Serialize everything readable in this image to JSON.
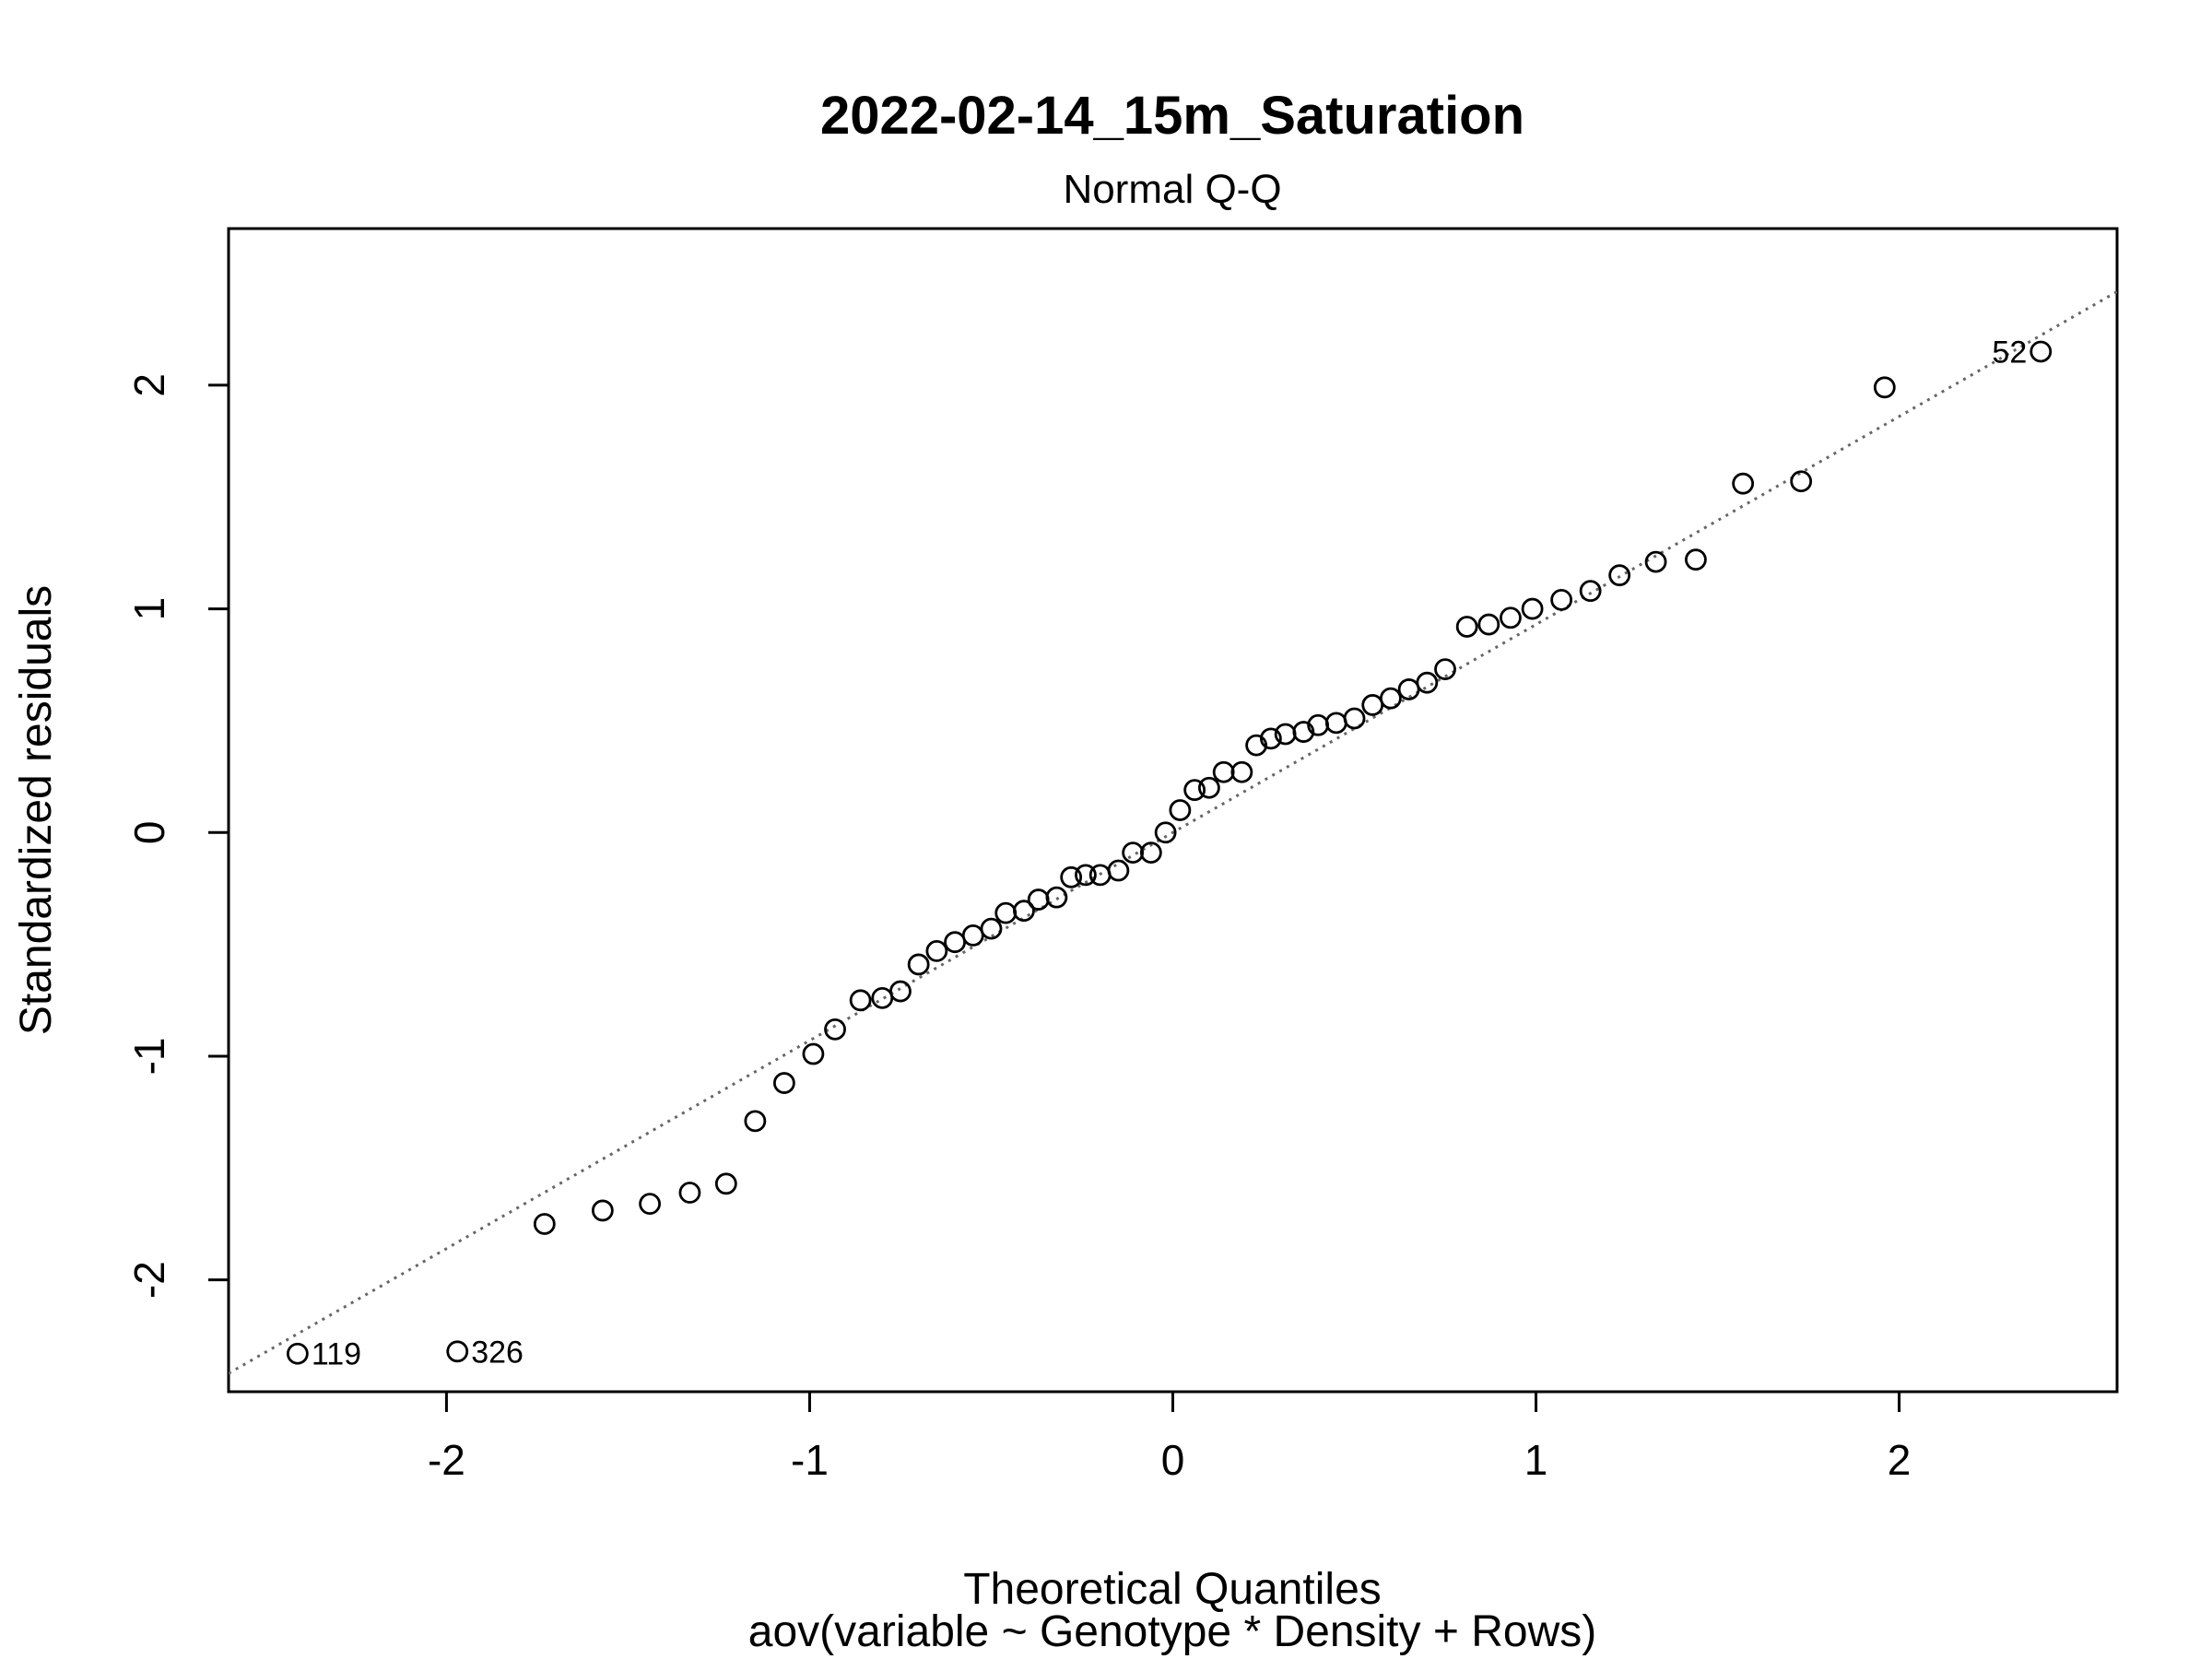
{
  "chart_data": {
    "type": "scatter",
    "title": "2022-02-14_15m_Saturation",
    "subtitle": "Normal Q-Q",
    "xlabel": "Theoretical Quantiles",
    "xlabel2": "aov(variable ~ Genotype * Density + Rows)",
    "ylabel": "Standardized residuals",
    "xlim": [
      -2.6,
      2.6
    ],
    "ylim": [
      -2.5,
      2.7
    ],
    "xticks": [
      -2,
      -1,
      0,
      1,
      2
    ],
    "yticks": [
      -2,
      -1,
      0,
      1,
      2
    ],
    "grid": false,
    "reference_line": {
      "slope": 0.93,
      "intercept": 0.0,
      "style": "dotted",
      "color": "#666666"
    },
    "points": [
      {
        "x": -2.41,
        "y": -2.33,
        "label": "119"
      },
      {
        "x": -1.97,
        "y": -2.32,
        "label": "326"
      },
      {
        "x": -1.73,
        "y": -1.75
      },
      {
        "x": -1.57,
        "y": -1.69
      },
      {
        "x": -1.44,
        "y": -1.66
      },
      {
        "x": -1.33,
        "y": -1.61
      },
      {
        "x": -1.23,
        "y": -1.57
      },
      {
        "x": -1.15,
        "y": -1.29
      },
      {
        "x": -1.07,
        "y": -1.12
      },
      {
        "x": -0.99,
        "y": -0.99
      },
      {
        "x": -0.93,
        "y": -0.88
      },
      {
        "x": -0.86,
        "y": -0.75
      },
      {
        "x": -0.8,
        "y": -0.74
      },
      {
        "x": -0.75,
        "y": -0.71
      },
      {
        "x": -0.7,
        "y": -0.59
      },
      {
        "x": -0.65,
        "y": -0.53
      },
      {
        "x": -0.6,
        "y": -0.49
      },
      {
        "x": -0.55,
        "y": -0.46
      },
      {
        "x": -0.5,
        "y": -0.43
      },
      {
        "x": -0.46,
        "y": -0.36
      },
      {
        "x": -0.41,
        "y": -0.35
      },
      {
        "x": -0.37,
        "y": -0.3
      },
      {
        "x": -0.32,
        "y": -0.29
      },
      {
        "x": -0.28,
        "y": -0.2
      },
      {
        "x": -0.24,
        "y": -0.19
      },
      {
        "x": -0.2,
        "y": -0.19
      },
      {
        "x": -0.15,
        "y": -0.17
      },
      {
        "x": -0.11,
        "y": -0.09
      },
      {
        "x": -0.06,
        "y": -0.09
      },
      {
        "x": -0.02,
        "y": 0.0
      },
      {
        "x": 0.02,
        "y": 0.1
      },
      {
        "x": 0.06,
        "y": 0.19
      },
      {
        "x": 0.1,
        "y": 0.2
      },
      {
        "x": 0.14,
        "y": 0.27
      },
      {
        "x": 0.19,
        "y": 0.27
      },
      {
        "x": 0.23,
        "y": 0.39
      },
      {
        "x": 0.27,
        "y": 0.42
      },
      {
        "x": 0.31,
        "y": 0.44
      },
      {
        "x": 0.36,
        "y": 0.45
      },
      {
        "x": 0.4,
        "y": 0.48
      },
      {
        "x": 0.45,
        "y": 0.49
      },
      {
        "x": 0.5,
        "y": 0.51
      },
      {
        "x": 0.55,
        "y": 0.57
      },
      {
        "x": 0.6,
        "y": 0.6
      },
      {
        "x": 0.65,
        "y": 0.64
      },
      {
        "x": 0.7,
        "y": 0.67
      },
      {
        "x": 0.75,
        "y": 0.73
      },
      {
        "x": 0.81,
        "y": 0.92
      },
      {
        "x": 0.87,
        "y": 0.93
      },
      {
        "x": 0.93,
        "y": 0.96
      },
      {
        "x": 0.99,
        "y": 1.0
      },
      {
        "x": 1.07,
        "y": 1.04
      },
      {
        "x": 1.15,
        "y": 1.08
      },
      {
        "x": 1.23,
        "y": 1.15
      },
      {
        "x": 1.33,
        "y": 1.21
      },
      {
        "x": 1.44,
        "y": 1.22
      },
      {
        "x": 1.57,
        "y": 1.56
      },
      {
        "x": 1.73,
        "y": 1.57
      },
      {
        "x": 1.96,
        "y": 1.99
      },
      {
        "x": 2.39,
        "y": 2.15,
        "label": "52"
      }
    ]
  }
}
